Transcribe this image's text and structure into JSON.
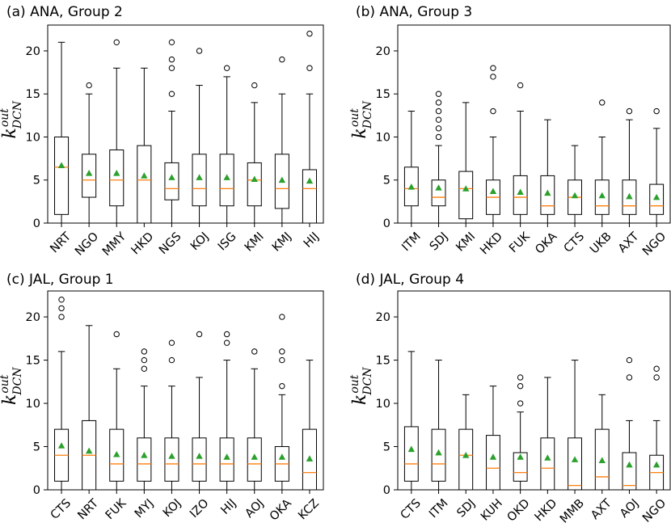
{
  "colors": {
    "median": "#ff7f0e",
    "mean": "#2ca02c",
    "stroke": "#000000"
  },
  "chart_data": [
    {
      "type": "boxplot",
      "title": "(a) ANA, Group 2",
      "ylabel": {
        "base": "k",
        "sup": "out",
        "sub": "DCN"
      },
      "ylim": [
        0,
        23
      ],
      "yticks": [
        "0",
        "5",
        "10",
        "15",
        "20"
      ],
      "categories": [
        "NRT",
        "NGO",
        "MMY",
        "HKD",
        "NGS",
        "KOJ",
        "ISG",
        "KMI",
        "KMJ",
        "HIJ"
      ],
      "boxes": [
        {
          "whislo": 0,
          "q1": 1,
          "med": 6.5,
          "q3": 10,
          "whishi": 21,
          "mean": 6.7,
          "fliers": []
        },
        {
          "whislo": 0,
          "q1": 3,
          "med": 5,
          "q3": 8,
          "whishi": 15,
          "mean": 5.8,
          "fliers": [
            16
          ]
        },
        {
          "whislo": 0,
          "q1": 2,
          "med": 5,
          "q3": 8.5,
          "whishi": 18,
          "mean": 5.8,
          "fliers": [
            21
          ]
        },
        {
          "whislo": 0,
          "q1": 0,
          "med": 5,
          "q3": 9,
          "whishi": 18,
          "mean": 5.5,
          "fliers": []
        },
        {
          "whislo": 0,
          "q1": 2.7,
          "med": 4,
          "q3": 7,
          "whishi": 13,
          "mean": 5.3,
          "fliers": [
            15,
            18,
            19,
            21
          ]
        },
        {
          "whislo": 0,
          "q1": 2,
          "med": 4,
          "q3": 8,
          "whishi": 16,
          "mean": 5.3,
          "fliers": [
            20
          ]
        },
        {
          "whislo": 0,
          "q1": 2,
          "med": 4,
          "q3": 8,
          "whishi": 17,
          "mean": 5.3,
          "fliers": [
            18
          ]
        },
        {
          "whislo": 0,
          "q1": 2,
          "med": 5,
          "q3": 7,
          "whishi": 14,
          "mean": 5.1,
          "fliers": [
            16
          ]
        },
        {
          "whislo": 0,
          "q1": 1.7,
          "med": 4,
          "q3": 8,
          "whishi": 15,
          "mean": 5.0,
          "fliers": [
            19
          ]
        },
        {
          "whislo": 0,
          "q1": 0,
          "med": 4,
          "q3": 6.2,
          "whishi": 15,
          "mean": 4.9,
          "fliers": [
            18,
            22
          ]
        }
      ]
    },
    {
      "type": "boxplot",
      "title": "(b) ANA, Group 3",
      "ylabel": {
        "base": "k",
        "sup": "out",
        "sub": "DCN"
      },
      "ylim": [
        0,
        23
      ],
      "yticks": [
        "0",
        "5",
        "10",
        "15",
        "20"
      ],
      "categories": [
        "ITM",
        "SDJ",
        "KMI",
        "HKD",
        "FUK",
        "OKA",
        "CTS",
        "UKB",
        "AXT",
        "NGO"
      ],
      "boxes": [
        {
          "whislo": 0,
          "q1": 2,
          "med": 4,
          "q3": 6.5,
          "whishi": 13,
          "mean": 4.2,
          "fliers": []
        },
        {
          "whislo": 0,
          "q1": 2,
          "med": 3,
          "q3": 5,
          "whishi": 9,
          "mean": 4.1,
          "fliers": [
            10,
            11,
            12,
            13,
            14,
            15
          ]
        },
        {
          "whislo": 0,
          "q1": 0.5,
          "med": 4,
          "q3": 6,
          "whishi": 14,
          "mean": 4.0,
          "fliers": []
        },
        {
          "whislo": 0,
          "q1": 1,
          "med": 3,
          "q3": 5,
          "whishi": 10,
          "mean": 3.7,
          "fliers": [
            13,
            17,
            18
          ]
        },
        {
          "whislo": 0,
          "q1": 1,
          "med": 3,
          "q3": 5.5,
          "whishi": 13,
          "mean": 3.6,
          "fliers": [
            16
          ]
        },
        {
          "whislo": 0,
          "q1": 1,
          "med": 2,
          "q3": 5.5,
          "whishi": 12,
          "mean": 3.5,
          "fliers": []
        },
        {
          "whislo": 0,
          "q1": 1,
          "med": 3,
          "q3": 5,
          "whishi": 9,
          "mean": 3.2,
          "fliers": []
        },
        {
          "whislo": 0,
          "q1": 1,
          "med": 2,
          "q3": 5,
          "whishi": 10,
          "mean": 3.2,
          "fliers": [
            14
          ]
        },
        {
          "whislo": 0,
          "q1": 1,
          "med": 2,
          "q3": 5,
          "whishi": 12,
          "mean": 3.1,
          "fliers": [
            13
          ]
        },
        {
          "whislo": 0,
          "q1": 1,
          "med": 2,
          "q3": 4.5,
          "whishi": 11,
          "mean": 3.0,
          "fliers": [
            13
          ]
        }
      ]
    },
    {
      "type": "boxplot",
      "title": "(c) JAL, Group 1",
      "ylabel": {
        "base": "k",
        "sup": "out",
        "sub": "DCN"
      },
      "ylim": [
        0,
        23
      ],
      "yticks": [
        "0",
        "5",
        "10",
        "15",
        "20"
      ],
      "categories": [
        "CTS",
        "NRT",
        "FUK",
        "MYJ",
        "KOJ",
        "IZO",
        "HIJ",
        "AOJ",
        "OKA",
        "KCZ"
      ],
      "boxes": [
        {
          "whislo": 0,
          "q1": 1,
          "med": 4,
          "q3": 7,
          "whishi": 16,
          "mean": 5.1,
          "fliers": [
            20,
            21,
            22
          ]
        },
        {
          "whislo": 0,
          "q1": 0,
          "med": 4,
          "q3": 8,
          "whishi": 19,
          "mean": 4.5,
          "fliers": []
        },
        {
          "whislo": 0,
          "q1": 1,
          "med": 3,
          "q3": 7,
          "whishi": 14,
          "mean": 4.1,
          "fliers": [
            18
          ]
        },
        {
          "whislo": 0,
          "q1": 1,
          "med": 3,
          "q3": 6,
          "whishi": 12,
          "mean": 4.0,
          "fliers": [
            14,
            15,
            16
          ]
        },
        {
          "whislo": 0,
          "q1": 1,
          "med": 3,
          "q3": 6,
          "whishi": 12,
          "mean": 3.9,
          "fliers": [
            15,
            17
          ]
        },
        {
          "whislo": 0,
          "q1": 1,
          "med": 3,
          "q3": 6,
          "whishi": 13,
          "mean": 3.9,
          "fliers": [
            18
          ]
        },
        {
          "whislo": 0,
          "q1": 1,
          "med": 3,
          "q3": 6,
          "whishi": 15,
          "mean": 3.8,
          "fliers": [
            17,
            18
          ]
        },
        {
          "whislo": 0,
          "q1": 1,
          "med": 3,
          "q3": 6,
          "whishi": 14,
          "mean": 3.8,
          "fliers": [
            16
          ]
        },
        {
          "whislo": 0,
          "q1": 1,
          "med": 3,
          "q3": 5,
          "whishi": 11,
          "mean": 3.8,
          "fliers": [
            12,
            15,
            16,
            20
          ]
        },
        {
          "whislo": 0,
          "q1": 0,
          "med": 2,
          "q3": 7,
          "whishi": 15,
          "mean": 3.6,
          "fliers": []
        }
      ]
    },
    {
      "type": "boxplot",
      "title": "(d) JAL, Group 4",
      "ylabel": {
        "base": "k",
        "sup": "out",
        "sub": "DCN"
      },
      "ylim": [
        0,
        23
      ],
      "yticks": [
        "0",
        "5",
        "10",
        "15",
        "20"
      ],
      "categories": [
        "CTS",
        "ITM",
        "SDJ",
        "KUH",
        "OKD",
        "HKD",
        "MMB",
        "AXT",
        "AOJ",
        "NGO"
      ],
      "boxes": [
        {
          "whislo": 0,
          "q1": 1,
          "med": 3,
          "q3": 7.3,
          "whishi": 16,
          "mean": 4.7,
          "fliers": []
        },
        {
          "whislo": 0,
          "q1": 1,
          "med": 3,
          "q3": 7,
          "whishi": 15,
          "mean": 4.3,
          "fliers": []
        },
        {
          "whislo": 0,
          "q1": 0,
          "med": 4,
          "q3": 7,
          "whishi": 11,
          "mean": 4.0,
          "fliers": []
        },
        {
          "whislo": 0,
          "q1": 0,
          "med": 2.5,
          "q3": 6.3,
          "whishi": 12,
          "mean": 3.8,
          "fliers": []
        },
        {
          "whislo": 0,
          "q1": 1,
          "med": 2,
          "q3": 4.3,
          "whishi": 9,
          "mean": 3.8,
          "fliers": [
            10,
            12,
            13
          ]
        },
        {
          "whislo": 0,
          "q1": 0,
          "med": 2.5,
          "q3": 6,
          "whishi": 13,
          "mean": 3.7,
          "fliers": []
        },
        {
          "whislo": 0,
          "q1": 0,
          "med": 0.5,
          "q3": 6,
          "whishi": 15,
          "mean": 3.5,
          "fliers": []
        },
        {
          "whislo": 0,
          "q1": 0,
          "med": 1.5,
          "q3": 7,
          "whishi": 11,
          "mean": 3.4,
          "fliers": []
        },
        {
          "whislo": 0,
          "q1": 0,
          "med": 0.5,
          "q3": 4.3,
          "whishi": 8,
          "mean": 2.9,
          "fliers": [
            13,
            15
          ]
        },
        {
          "whislo": 0,
          "q1": 0,
          "med": 2,
          "q3": 4,
          "whishi": 8,
          "mean": 2.9,
          "fliers": [
            13,
            14
          ]
        }
      ]
    }
  ]
}
